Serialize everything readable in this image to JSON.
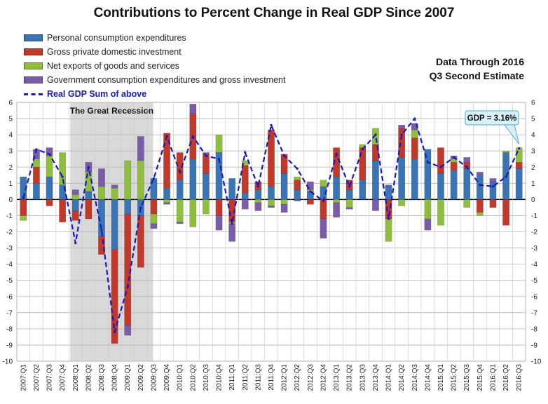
{
  "chart_data": {
    "type": "bar",
    "stacked": true,
    "title": "Contributions to Percent Change in Real GDP Since 2007",
    "xlabel": "",
    "ylabel": "",
    "ylim": [
      -10,
      6
    ],
    "yticks": [
      6,
      5,
      4,
      3,
      2,
      1,
      0,
      -1,
      -2,
      -3,
      -4,
      -5,
      -6,
      -7,
      -8,
      -9,
      -10
    ],
    "grid": true,
    "legend_position": "top-left",
    "categories": [
      "2007:Q1",
      "2007:Q2",
      "2007:Q3",
      "2007:Q4",
      "2008:Q1",
      "2008:Q2",
      "2008:Q3",
      "2008:Q4",
      "2009:Q1",
      "2009:Q2",
      "2009:Q3",
      "2009:Q4",
      "2010:Q1",
      "2010:Q2",
      "2010:Q3",
      "2010:Q4",
      "2011:Q1",
      "2011:Q2",
      "2011:Q3",
      "2011:Q4",
      "2012:Q1",
      "2012:Q2",
      "2012:Q3",
      "2012:Q4",
      "2013:Q1",
      "2013:Q2",
      "2013:Q3",
      "2013:Q4",
      "2014:Q1",
      "2014:Q2",
      "2014:Q3",
      "2014:Q4",
      "2015:Q1",
      "2015:Q2",
      "2015:Q3",
      "2015:Q4",
      "2016:Q1",
      "2016:Q2",
      "2016:Q3"
    ],
    "series": [
      {
        "name": "Personal consumption expenditures",
        "color": "#3a74b4",
        "values": [
          1.4,
          1.0,
          1.4,
          0.9,
          -0.7,
          0.5,
          -2.3,
          -3.1,
          -0.9,
          -1.0,
          1.3,
          0.7,
          1.2,
          2.5,
          1.6,
          2.9,
          1.3,
          0.4,
          0.6,
          0.8,
          1.6,
          0.6,
          0.5,
          0.8,
          1.4,
          0.6,
          1.2,
          2.4,
          0.8,
          2.6,
          2.5,
          3.1,
          1.6,
          1.8,
          1.9,
          1.5,
          1.1,
          2.9,
          1.9
        ]
      },
      {
        "name": "Gross private domestic investment",
        "color": "#c0392b",
        "values": [
          -1.0,
          1.0,
          -0.4,
          -1.4,
          -0.6,
          -1.2,
          -1.1,
          -5.8,
          -6.9,
          -3.2,
          -0.9,
          3.4,
          1.7,
          2.8,
          1.2,
          -1.0,
          -1.4,
          1.7,
          0.5,
          3.5,
          1.2,
          0.6,
          -0.3,
          -1.2,
          1.8,
          0.6,
          2.0,
          1.0,
          -1.2,
          1.8,
          1.3,
          0.0,
          1.6,
          0.5,
          0.4,
          -0.8,
          -0.5,
          -1.6,
          0.4
        ]
      },
      {
        "name": "Net exports of goods and services",
        "color": "#8fbd3c",
        "values": [
          -0.3,
          0.5,
          1.3,
          2.0,
          0.3,
          1.2,
          0.8,
          0.7,
          2.4,
          2.4,
          -0.6,
          -0.2,
          -1.4,
          -1.7,
          -0.9,
          1.1,
          -0.1,
          0.3,
          -0.2,
          -0.4,
          -0.3,
          0.2,
          0.1,
          0.4,
          -0.2,
          -0.5,
          0.2,
          1.0,
          -1.4,
          -0.4,
          0.5,
          -1.2,
          -1.6,
          0.2,
          -0.5,
          -0.2,
          0.0,
          0.1,
          0.9
        ]
      },
      {
        "name": "Government consumption expenditures and gross investment",
        "color": "#7b5ca8",
        "values": [
          0.0,
          0.6,
          0.5,
          0.0,
          0.3,
          0.6,
          1.1,
          0.2,
          -0.6,
          1.5,
          -0.3,
          -0.1,
          -0.1,
          0.6,
          0.1,
          -0.9,
          -1.1,
          -0.6,
          -0.5,
          -0.1,
          -0.5,
          -0.1,
          0.5,
          -1.2,
          -0.9,
          -0.1,
          0.0,
          -0.7,
          0.1,
          0.2,
          0.4,
          -0.7,
          0.0,
          0.2,
          0.3,
          0.2,
          0.2,
          0.0,
          0.0
        ]
      }
    ],
    "line_series": {
      "name": "Real GDP Sum of above",
      "color": "#1a1ab8",
      "dashed": true,
      "values": [
        0.1,
        3.1,
        2.8,
        1.4,
        -2.7,
        2.0,
        -1.9,
        -8.2,
        -5.4,
        -0.5,
        1.3,
        3.9,
        1.7,
        3.9,
        2.7,
        2.5,
        -1.5,
        2.9,
        0.8,
        4.6,
        2.7,
        1.9,
        0.5,
        -0.1,
        2.8,
        0.8,
        3.1,
        4.0,
        -1.2,
        4.0,
        5.0,
        2.3,
        2.0,
        2.6,
        2.0,
        0.9,
        0.8,
        1.4,
        3.16
      ]
    },
    "annotations": [
      {
        "type": "shaded-region",
        "label": "The Great Recession",
        "from": "2008:Q1",
        "to": "2009:Q2"
      },
      {
        "type": "callout",
        "label": "GDP = 3.16%",
        "at": "2016:Q3"
      }
    ]
  },
  "note": {
    "line1": "Data Through 2016",
    "line2": "Q3 Second Estimate"
  }
}
